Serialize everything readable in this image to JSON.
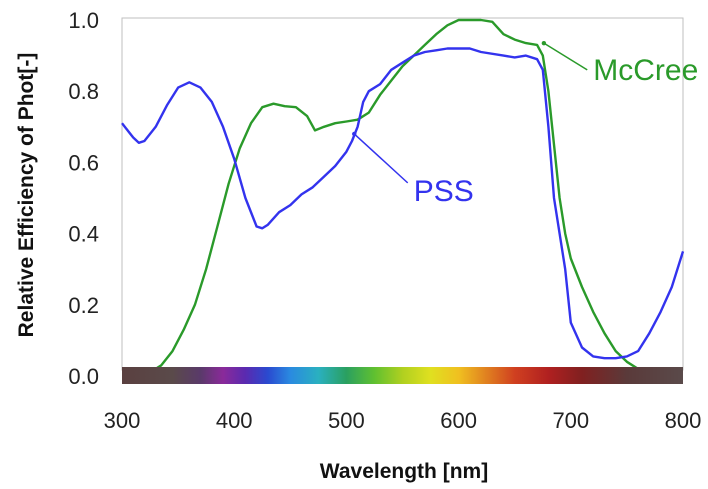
{
  "chart_data": {
    "type": "line",
    "xlabel": "Wavelength [nm]",
    "ylabel": "Relative Efficiency of Phot[-]",
    "xlim": [
      300,
      800
    ],
    "ylim": [
      0,
      1.0
    ],
    "x_ticks": [
      "300",
      "400",
      "500",
      "600",
      "700",
      "800"
    ],
    "y_ticks": [
      "0.0",
      "0.2",
      "0.4",
      "0.6",
      "0.8",
      "1.0"
    ],
    "grid": false,
    "legend": "none (series labeled by annotations)",
    "spectrum_bar": true,
    "series": [
      {
        "name": "McCree",
        "color": "#2a9a2a",
        "points": [
          [
            315,
            0.0
          ],
          [
            325,
            0.01
          ],
          [
            335,
            0.03
          ],
          [
            345,
            0.07
          ],
          [
            355,
            0.13
          ],
          [
            365,
            0.2
          ],
          [
            375,
            0.3
          ],
          [
            385,
            0.42
          ],
          [
            395,
            0.54
          ],
          [
            405,
            0.64
          ],
          [
            415,
            0.71
          ],
          [
            425,
            0.755
          ],
          [
            435,
            0.765
          ],
          [
            445,
            0.758
          ],
          [
            455,
            0.755
          ],
          [
            465,
            0.73
          ],
          [
            472,
            0.69
          ],
          [
            480,
            0.7
          ],
          [
            490,
            0.71
          ],
          [
            500,
            0.715
          ],
          [
            510,
            0.72
          ],
          [
            520,
            0.74
          ],
          [
            530,
            0.79
          ],
          [
            540,
            0.83
          ],
          [
            550,
            0.87
          ],
          [
            560,
            0.9
          ],
          [
            570,
            0.93
          ],
          [
            580,
            0.96
          ],
          [
            590,
            0.985
          ],
          [
            600,
            1.0
          ],
          [
            610,
            1.0
          ],
          [
            620,
            1.0
          ],
          [
            630,
            0.995
          ],
          [
            640,
            0.96
          ],
          [
            650,
            0.945
          ],
          [
            660,
            0.935
          ],
          [
            670,
            0.93
          ],
          [
            675,
            0.9
          ],
          [
            680,
            0.8
          ],
          [
            685,
            0.65
          ],
          [
            690,
            0.5
          ],
          [
            695,
            0.4
          ],
          [
            700,
            0.33
          ],
          [
            710,
            0.25
          ],
          [
            720,
            0.18
          ],
          [
            730,
            0.12
          ],
          [
            740,
            0.07
          ],
          [
            750,
            0.04
          ],
          [
            760,
            0.02
          ],
          [
            770,
            0.01
          ],
          [
            780,
            0.0
          ]
        ]
      },
      {
        "name": "PSS",
        "color": "#3333ee",
        "points": [
          [
            300,
            0.71
          ],
          [
            305,
            0.69
          ],
          [
            310,
            0.67
          ],
          [
            315,
            0.655
          ],
          [
            320,
            0.66
          ],
          [
            330,
            0.7
          ],
          [
            340,
            0.76
          ],
          [
            350,
            0.81
          ],
          [
            360,
            0.825
          ],
          [
            370,
            0.81
          ],
          [
            380,
            0.77
          ],
          [
            390,
            0.7
          ],
          [
            400,
            0.61
          ],
          [
            410,
            0.5
          ],
          [
            420,
            0.42
          ],
          [
            425,
            0.415
          ],
          [
            430,
            0.425
          ],
          [
            440,
            0.46
          ],
          [
            450,
            0.48
          ],
          [
            460,
            0.51
          ],
          [
            470,
            0.53
          ],
          [
            480,
            0.56
          ],
          [
            490,
            0.59
          ],
          [
            500,
            0.63
          ],
          [
            505,
            0.66
          ],
          [
            510,
            0.7
          ],
          [
            515,
            0.77
          ],
          [
            520,
            0.8
          ],
          [
            530,
            0.82
          ],
          [
            540,
            0.86
          ],
          [
            550,
            0.88
          ],
          [
            560,
            0.9
          ],
          [
            570,
            0.91
          ],
          [
            580,
            0.915
          ],
          [
            590,
            0.92
          ],
          [
            600,
            0.92
          ],
          [
            610,
            0.92
          ],
          [
            620,
            0.91
          ],
          [
            640,
            0.9
          ],
          [
            650,
            0.895
          ],
          [
            660,
            0.9
          ],
          [
            670,
            0.89
          ],
          [
            675,
            0.86
          ],
          [
            680,
            0.7
          ],
          [
            685,
            0.5
          ],
          [
            690,
            0.4
          ],
          [
            695,
            0.3
          ],
          [
            700,
            0.15
          ],
          [
            710,
            0.08
          ],
          [
            720,
            0.055
          ],
          [
            730,
            0.05
          ],
          [
            740,
            0.05
          ],
          [
            750,
            0.055
          ],
          [
            760,
            0.07
          ],
          [
            770,
            0.12
          ],
          [
            780,
            0.18
          ],
          [
            790,
            0.25
          ],
          [
            800,
            0.35
          ]
        ]
      }
    ],
    "annotations": [
      {
        "text": "McCree",
        "color": "#2a9a2a",
        "target": [
          676,
          0.935
        ],
        "label_at": [
          720,
          0.86
        ]
      },
      {
        "text": "PSS",
        "color": "#3333ee",
        "target": [
          507,
          0.68
        ],
        "label_at": [
          560,
          0.52
        ]
      }
    ]
  }
}
